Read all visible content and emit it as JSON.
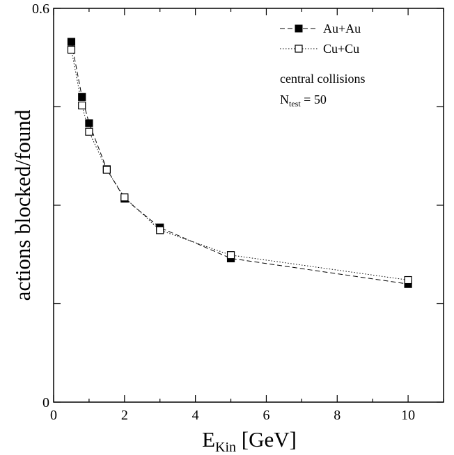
{
  "chart_data": {
    "type": "line",
    "xlabel": {
      "main": "E",
      "sub": "Kin",
      "rest": " [GeV]"
    },
    "ylabel": "actions blocked/found",
    "xlim": [
      0,
      11
    ],
    "ylim": [
      0,
      0.6
    ],
    "x_ticks": [
      0,
      2,
      4,
      6,
      8,
      10
    ],
    "x_tick_labels": [
      "0",
      "2",
      "4",
      "6",
      "8",
      "10"
    ],
    "y_ticks_labeled": [
      0,
      0.6
    ],
    "y_tick_labels": [
      "0",
      "0.6"
    ],
    "y_ticks_unlabeled": [
      0.15,
      0.3,
      0.45
    ],
    "grid": false,
    "legend_position": "top-right",
    "series": [
      {
        "name": "Au+Au",
        "marker": "filled-square",
        "line_style": "dashed",
        "color": "#000000",
        "x": [
          0.5,
          0.8,
          1.0,
          1.5,
          2.0,
          3.0,
          5.0,
          10.0
        ],
        "y": [
          0.549,
          0.465,
          0.425,
          0.355,
          0.31,
          0.266,
          0.219,
          0.18
        ]
      },
      {
        "name": "Cu+Cu",
        "marker": "open-square",
        "line_style": "dotted",
        "color": "#000000",
        "x": [
          0.5,
          0.8,
          1.0,
          1.5,
          2.0,
          3.0,
          5.0,
          10.0
        ],
        "y": [
          0.537,
          0.452,
          0.412,
          0.354,
          0.312,
          0.262,
          0.224,
          0.186
        ]
      }
    ],
    "annotations": {
      "line1": "central collisions",
      "line2_main": "N",
      "line2_sub": "test",
      "line2_rest": " = 50"
    }
  }
}
